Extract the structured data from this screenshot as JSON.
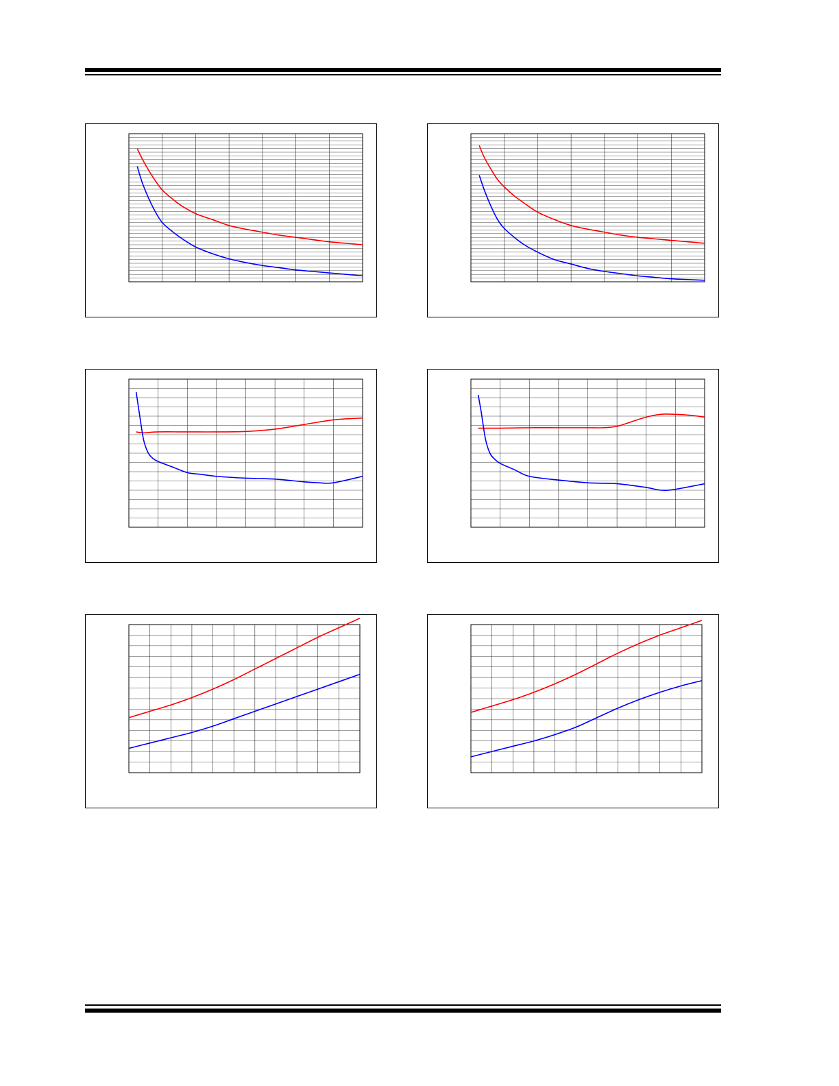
{
  "colors": {
    "series_red": "#ff0000",
    "series_blue": "#0000ff",
    "grid": "#000000"
  },
  "chart_data": [
    {
      "type": "line",
      "xlim": [
        0,
        7
      ],
      "ylim": [
        0,
        1
      ],
      "grid": {
        "vlines": 7,
        "hlines": 40
      },
      "series": [
        {
          "color": "#ff0000",
          "x": [
            0.25,
            0.4,
            0.6,
            0.8,
            1.0,
            1.3,
            1.6,
            2.0,
            2.5,
            3.0,
            3.5,
            4.0,
            4.5,
            5.0,
            5.5,
            6.0,
            6.5,
            7.0
          ],
          "y": [
            0.9,
            0.83,
            0.75,
            0.68,
            0.62,
            0.56,
            0.51,
            0.46,
            0.42,
            0.38,
            0.355,
            0.335,
            0.315,
            0.3,
            0.285,
            0.27,
            0.26,
            0.25
          ]
        },
        {
          "color": "#0000ff",
          "x": [
            0.25,
            0.4,
            0.6,
            0.8,
            1.0,
            1.3,
            1.6,
            2.0,
            2.5,
            3.0,
            3.5,
            4.0,
            4.5,
            5.0,
            5.5,
            6.0,
            6.5,
            7.0
          ],
          "y": [
            0.78,
            0.67,
            0.56,
            0.47,
            0.4,
            0.34,
            0.29,
            0.235,
            0.19,
            0.155,
            0.13,
            0.11,
            0.095,
            0.08,
            0.07,
            0.06,
            0.05,
            0.04
          ]
        }
      ]
    },
    {
      "type": "line",
      "xlim": [
        0,
        7
      ],
      "ylim": [
        0,
        1
      ],
      "grid": {
        "vlines": 7,
        "hlines": 40
      },
      "series": [
        {
          "color": "#ff0000",
          "x": [
            0.25,
            0.4,
            0.6,
            0.8,
            1.0,
            1.3,
            1.6,
            2.0,
            2.5,
            3.0,
            3.5,
            4.0,
            4.5,
            5.0,
            5.5,
            6.0,
            6.5,
            7.0
          ],
          "y": [
            0.92,
            0.84,
            0.76,
            0.69,
            0.64,
            0.58,
            0.53,
            0.47,
            0.42,
            0.38,
            0.355,
            0.335,
            0.315,
            0.3,
            0.29,
            0.28,
            0.27,
            0.26
          ]
        },
        {
          "color": "#0000ff",
          "x": [
            0.25,
            0.4,
            0.6,
            0.8,
            1.0,
            1.3,
            1.6,
            2.0,
            2.5,
            3.0,
            3.5,
            4.0,
            4.5,
            5.0,
            5.5,
            6.0,
            6.5,
            7.0
          ],
          "y": [
            0.72,
            0.62,
            0.51,
            0.42,
            0.36,
            0.3,
            0.25,
            0.2,
            0.15,
            0.12,
            0.09,
            0.07,
            0.055,
            0.04,
            0.03,
            0.02,
            0.015,
            0.01
          ]
        }
      ]
    },
    {
      "type": "line",
      "xlim": [
        0,
        8
      ],
      "ylim": [
        0,
        16
      ],
      "grid": {
        "vlines": 8,
        "hlines": 16
      },
      "series": [
        {
          "color": "#ff0000",
          "x": [
            0.25,
            0.5,
            1,
            2,
            3,
            4,
            5,
            6,
            7,
            8
          ],
          "y": [
            10.3,
            10.2,
            10.3,
            10.3,
            10.3,
            10.35,
            10.6,
            11.1,
            11.6,
            11.8
          ]
        },
        {
          "color": "#0000ff",
          "x": [
            0.25,
            0.35,
            0.5,
            0.65,
            0.8,
            1,
            1.5,
            2,
            2.5,
            3,
            4,
            5,
            6,
            6.5,
            7,
            8
          ],
          "y": [
            14.6,
            12.5,
            9.5,
            8.1,
            7.5,
            7.1,
            6.5,
            5.9,
            5.7,
            5.5,
            5.3,
            5.2,
            4.9,
            4.8,
            4.8,
            5.5
          ]
        }
      ]
    },
    {
      "type": "line",
      "xlim": [
        0,
        8
      ],
      "ylim": [
        0,
        16
      ],
      "grid": {
        "vlines": 8,
        "hlines": 16
      },
      "series": [
        {
          "color": "#ff0000",
          "x": [
            0.25,
            1,
            2,
            3,
            4,
            4.5,
            5,
            5.5,
            6,
            6.5,
            7,
            7.5,
            8
          ],
          "y": [
            10.7,
            10.7,
            10.75,
            10.75,
            10.75,
            10.75,
            10.9,
            11.4,
            11.9,
            12.2,
            12.2,
            12.1,
            11.9
          ]
        },
        {
          "color": "#0000ff",
          "x": [
            0.25,
            0.35,
            0.5,
            0.65,
            0.8,
            1,
            1.5,
            2,
            3,
            4,
            5,
            6,
            6.5,
            7,
            8
          ],
          "y": [
            14.3,
            12.5,
            9.5,
            8.0,
            7.4,
            6.9,
            6.2,
            5.5,
            5.1,
            4.8,
            4.7,
            4.3,
            4.0,
            4.1,
            4.7
          ]
        }
      ]
    },
    {
      "type": "line",
      "xlim": [
        0,
        11
      ],
      "ylim": [
        0,
        14
      ],
      "grid": {
        "vlines": 11,
        "hlines": 14
      },
      "series": [
        {
          "color": "#ff0000",
          "x": [
            0,
            1,
            2,
            3,
            4,
            5,
            6,
            7,
            8,
            9,
            10,
            11
          ],
          "y": [
            5.2,
            5.8,
            6.4,
            7.1,
            7.9,
            8.8,
            9.8,
            10.8,
            11.8,
            12.8,
            13.7,
            14.6
          ]
        },
        {
          "color": "#0000ff",
          "x": [
            0,
            1,
            2,
            3,
            4,
            5,
            6,
            7,
            8,
            9,
            10,
            11
          ],
          "y": [
            2.3,
            2.8,
            3.3,
            3.8,
            4.4,
            5.1,
            5.8,
            6.5,
            7.2,
            7.9,
            8.6,
            9.3
          ]
        }
      ]
    },
    {
      "type": "line",
      "xlim": [
        0,
        11
      ],
      "ylim": [
        0,
        14
      ],
      "grid": {
        "vlines": 11,
        "hlines": 14
      },
      "series": [
        {
          "color": "#ff0000",
          "x": [
            0,
            1,
            2,
            3,
            4,
            5,
            6,
            7,
            8,
            9,
            10,
            11
          ],
          "y": [
            5.7,
            6.3,
            6.9,
            7.6,
            8.4,
            9.3,
            10.3,
            11.3,
            12.2,
            13.0,
            13.7,
            14.4
          ]
        },
        {
          "color": "#0000ff",
          "x": [
            0,
            1,
            2,
            3,
            4,
            5,
            6,
            7,
            8,
            9,
            10,
            11
          ],
          "y": [
            1.5,
            2.0,
            2.5,
            3.0,
            3.6,
            4.3,
            5.2,
            6.1,
            6.9,
            7.6,
            8.2,
            8.7
          ]
        }
      ]
    }
  ]
}
